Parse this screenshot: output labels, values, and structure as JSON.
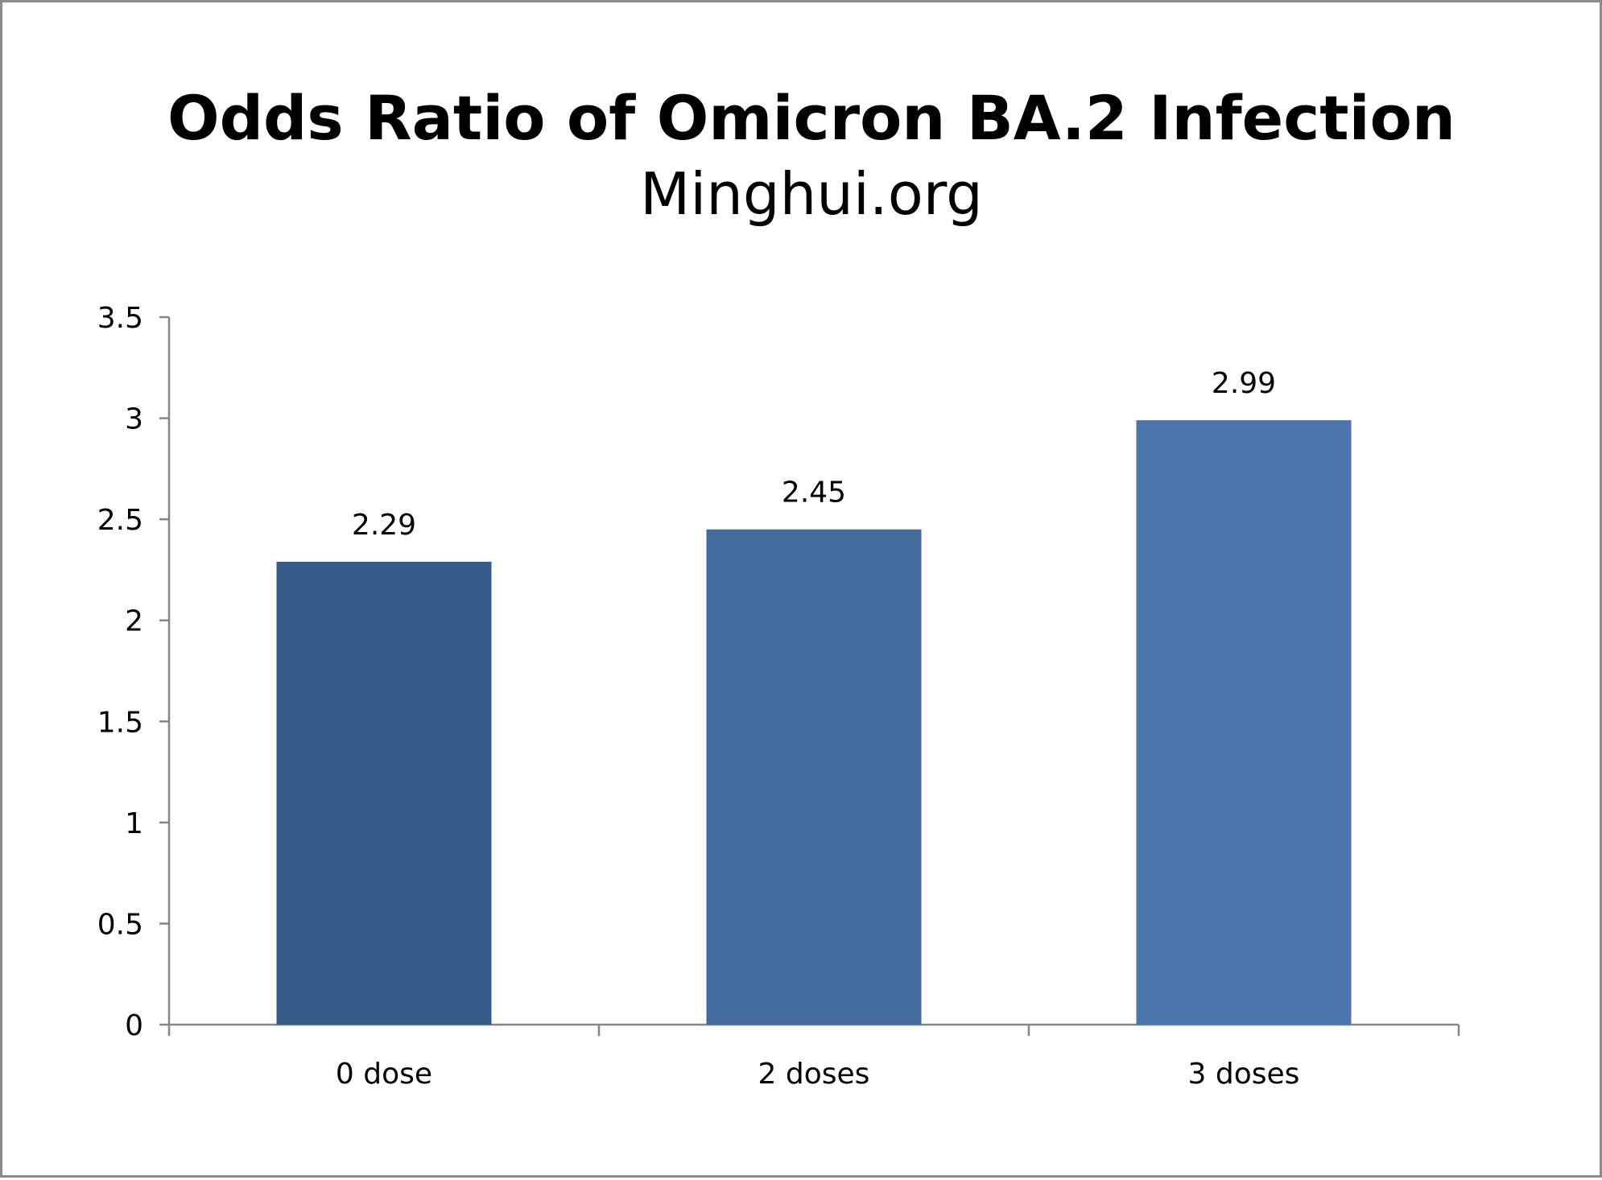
{
  "chart_data": {
    "type": "bar",
    "title": "Odds Ratio of Omicron BA.2 Infection",
    "subtitle": "Minghui.org",
    "xlabel": "",
    "ylabel": "",
    "categories": [
      "0 dose",
      "2 doses",
      "3 doses"
    ],
    "values": [
      2.29,
      2.45,
      2.99
    ],
    "data_labels": [
      "2.29",
      "2.45",
      "2.99"
    ],
    "ylim": [
      0,
      3.5
    ],
    "yticks": [
      0,
      0.5,
      1,
      1.5,
      2,
      2.5,
      3,
      3.5
    ],
    "ytick_labels": [
      "0",
      "0.5",
      "1",
      "1.5",
      "2",
      "2.5",
      "3",
      "3.5"
    ],
    "grid": false,
    "legend": "none",
    "bar_colors": [
      "#375c87",
      "#426b9c",
      "#4a76ab"
    ],
    "axis_color": "#868686",
    "frame_color": "#8c8c8c"
  }
}
